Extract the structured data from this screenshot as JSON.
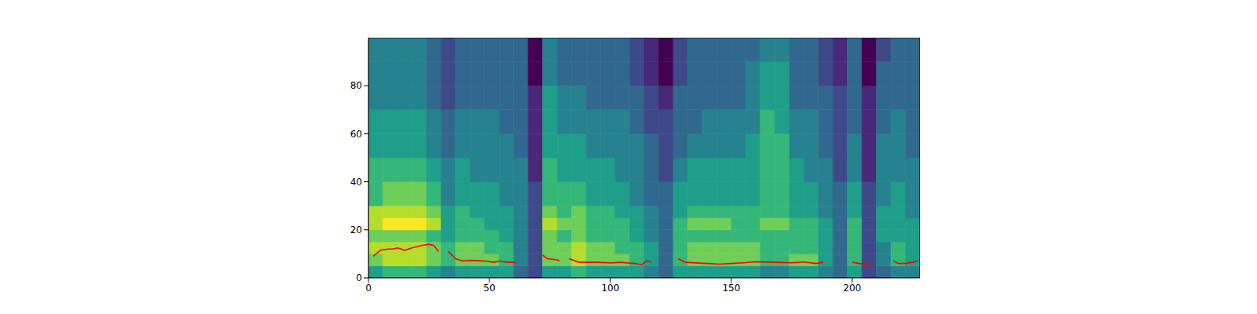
{
  "chart_data": {
    "type": "heatmap",
    "xlim": [
      0,
      228
    ],
    "xticks": [
      0,
      50,
      100,
      150,
      200
    ],
    "ylim": [
      0,
      100
    ],
    "yticks": [
      0,
      20,
      40,
      60,
      80
    ],
    "heatmap": {
      "x_edges": [
        0,
        6,
        12,
        18,
        24,
        30,
        36,
        42,
        48,
        54,
        60,
        66,
        72,
        78,
        84,
        90,
        96,
        102,
        108,
        114,
        120,
        126,
        132,
        138,
        144,
        150,
        156,
        162,
        168,
        174,
        180,
        186,
        192,
        198,
        204,
        210,
        216,
        222,
        228
      ],
      "y_edges": [
        0,
        5,
        10,
        15,
        20,
        25,
        30,
        40,
        50,
        60,
        70,
        80,
        90,
        100
      ],
      "clim": [
        0,
        9
      ],
      "cells": [
        [
          5,
          7,
          8,
          7,
          8,
          8,
          6,
          6,
          5,
          5,
          4,
          4,
          4
        ],
        [
          6,
          8,
          8,
          7,
          9,
          8,
          7,
          6,
          5,
          5,
          4,
          4,
          4
        ],
        [
          6,
          8,
          8,
          7,
          9,
          8,
          7,
          6,
          5,
          5,
          4,
          4,
          4
        ],
        [
          6,
          8,
          8,
          7,
          9,
          8,
          7,
          6,
          5,
          5,
          4,
          4,
          4
        ],
        [
          5,
          7,
          7,
          6,
          8,
          7,
          6,
          5,
          4,
          4,
          3,
          3,
          3
        ],
        [
          4,
          6,
          6,
          5,
          5,
          5,
          4,
          4,
          3,
          3,
          2,
          2,
          2
        ],
        [
          5,
          7,
          7,
          6,
          6,
          6,
          5,
          5,
          4,
          4,
          3,
          3,
          3
        ],
        [
          5,
          7,
          7,
          6,
          6,
          5,
          5,
          4,
          4,
          4,
          3,
          3,
          3
        ],
        [
          5,
          7,
          6,
          6,
          5,
          5,
          5,
          4,
          4,
          4,
          3,
          3,
          3
        ],
        [
          5,
          6,
          6,
          5,
          5,
          5,
          4,
          4,
          4,
          3,
          3,
          3,
          3
        ],
        [
          3,
          4,
          4,
          4,
          4,
          4,
          4,
          4,
          3,
          3,
          3,
          3,
          3
        ],
        [
          2,
          2,
          2,
          2,
          2,
          2,
          2,
          1,
          1,
          1,
          1,
          0,
          0
        ],
        [
          5,
          7,
          7,
          7,
          8,
          7,
          6,
          6,
          5,
          5,
          5,
          4,
          4
        ],
        [
          5,
          7,
          7,
          6,
          7,
          6,
          6,
          5,
          5,
          4,
          4,
          3,
          3
        ],
        [
          6,
          8,
          8,
          7,
          7,
          7,
          6,
          5,
          5,
          4,
          4,
          3,
          3
        ],
        [
          5,
          7,
          7,
          6,
          6,
          6,
          5,
          5,
          4,
          4,
          3,
          3,
          3
        ],
        [
          5,
          7,
          7,
          6,
          6,
          6,
          5,
          5,
          4,
          4,
          3,
          3,
          3
        ],
        [
          5,
          7,
          6,
          6,
          6,
          5,
          5,
          4,
          4,
          4,
          3,
          3,
          3
        ],
        [
          5,
          6,
          6,
          5,
          5,
          5,
          4,
          4,
          4,
          3,
          3,
          2,
          2
        ],
        [
          4,
          5,
          5,
          4,
          4,
          4,
          3,
          3,
          3,
          2,
          2,
          1,
          1
        ],
        [
          3,
          3,
          3,
          3,
          3,
          3,
          3,
          2,
          2,
          2,
          1,
          0,
          0
        ],
        [
          5,
          6,
          6,
          6,
          6,
          5,
          5,
          4,
          3,
          3,
          3,
          2,
          2
        ],
        [
          5,
          7,
          7,
          6,
          7,
          6,
          5,
          5,
          4,
          3,
          3,
          3,
          3
        ],
        [
          5,
          7,
          7,
          6,
          7,
          6,
          5,
          5,
          4,
          4,
          3,
          3,
          3
        ],
        [
          5,
          7,
          7,
          6,
          7,
          6,
          5,
          5,
          4,
          4,
          3,
          3,
          3
        ],
        [
          5,
          7,
          7,
          6,
          6,
          6,
          5,
          5,
          4,
          4,
          3,
          3,
          3
        ],
        [
          5,
          7,
          7,
          6,
          6,
          6,
          5,
          5,
          5,
          4,
          4,
          4,
          3
        ],
        [
          4,
          6,
          6,
          6,
          7,
          6,
          6,
          6,
          6,
          6,
          5,
          5,
          4
        ],
        [
          4,
          6,
          6,
          6,
          7,
          6,
          6,
          6,
          6,
          5,
          5,
          5,
          4
        ],
        [
          5,
          7,
          6,
          6,
          6,
          5,
          5,
          5,
          4,
          4,
          3,
          3,
          3
        ],
        [
          5,
          7,
          6,
          6,
          6,
          5,
          5,
          4,
          4,
          4,
          3,
          3,
          3
        ],
        [
          4,
          5,
          5,
          5,
          5,
          4,
          4,
          4,
          3,
          3,
          3,
          2,
          2
        ],
        [
          3,
          3,
          3,
          3,
          3,
          3,
          3,
          2,
          2,
          2,
          2,
          1,
          1
        ],
        [
          5,
          6,
          6,
          6,
          6,
          5,
          5,
          4,
          4,
          3,
          3,
          3,
          3
        ],
        [
          2,
          2,
          2,
          2,
          2,
          2,
          2,
          1,
          1,
          1,
          1,
          0,
          0
        ],
        [
          3,
          4,
          4,
          5,
          5,
          5,
          4,
          4,
          4,
          3,
          3,
          3,
          2
        ],
        [
          4,
          6,
          6,
          5,
          5,
          5,
          5,
          4,
          4,
          4,
          3,
          3,
          3
        ],
        [
          4,
          5,
          5,
          5,
          5,
          4,
          4,
          4,
          3,
          3,
          3,
          3,
          3
        ]
      ]
    },
    "x": [
      2,
      5,
      8,
      10,
      12,
      15,
      18,
      22,
      25,
      27,
      29,
      31,
      33,
      36,
      39,
      42,
      48,
      52,
      54,
      58,
      61,
      66,
      72,
      74,
      78,
      79,
      81,
      83,
      87,
      95,
      100,
      104,
      110,
      113,
      115,
      117,
      122,
      128,
      131,
      140,
      145,
      150,
      155,
      160,
      168,
      175,
      180,
      185,
      188,
      194,
      200,
      203,
      206,
      209,
      213,
      217,
      219,
      222,
      225,
      227
    ],
    "series": [
      {
        "type": "line",
        "color": "#ff0000",
        "values": [
          9,
          11.5,
          12,
          12,
          12.5,
          11.5,
          12.5,
          13.5,
          14,
          13.5,
          11,
          null,
          11,
          8,
          7,
          7.3,
          7,
          6.5,
          7,
          6.5,
          6.5,
          null,
          9.5,
          8,
          7.5,
          7,
          null,
          8,
          6.5,
          6.5,
          6.2,
          6.5,
          6,
          5.5,
          7,
          6.5,
          null,
          8,
          6.5,
          6,
          5.7,
          6,
          6.3,
          6.7,
          6.5,
          6.3,
          6.6,
          6,
          6.5,
          null,
          6.5,
          6,
          5.5,
          5,
          null,
          7,
          6,
          6,
          6.5,
          7
        ]
      }
    ]
  }
}
